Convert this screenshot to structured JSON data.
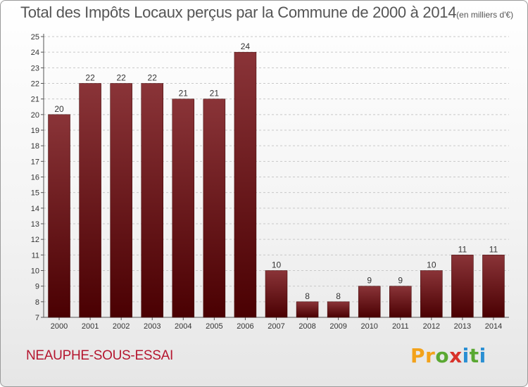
{
  "title": "Total des Impôts Locaux perçus par la Commune de 2000 à 2014",
  "title_unit": "(en milliers d'€)",
  "commune": "NEAUPHE-SOUS-ESSAI",
  "logo": {
    "letters": [
      "P",
      "r",
      "o",
      "x",
      "i",
      "t",
      "i"
    ]
  },
  "colors": {
    "bar_top": "#8a3438",
    "bar_bottom": "#4a0002",
    "commune": "#b5162f",
    "text": "#555555"
  },
  "chart_data": {
    "type": "bar",
    "title": "Total des Impôts Locaux perçus par la Commune de 2000 à 2014",
    "categories": [
      "2000",
      "2001",
      "2002",
      "2003",
      "2004",
      "2005",
      "2006",
      "2007",
      "2008",
      "2009",
      "2010",
      "2011",
      "2012",
      "2013",
      "2014"
    ],
    "values": [
      20,
      22,
      22,
      22,
      21,
      21,
      24,
      10,
      8,
      8,
      9,
      9,
      10,
      11,
      11
    ],
    "value_labels": [
      "20",
      "22",
      "22",
      "22",
      "21",
      "21",
      "24",
      "10",
      "8",
      "8",
      "9",
      "9",
      "10",
      "11",
      "11"
    ],
    "ylim": [
      7,
      25
    ],
    "yticks": [
      7,
      8,
      9,
      10,
      11,
      12,
      13,
      14,
      15,
      16,
      17,
      18,
      19,
      20,
      21,
      22,
      23,
      24,
      25
    ],
    "ytick_labels": [
      "7",
      "8",
      "9",
      "10",
      "11",
      "12",
      "13",
      "14",
      "15",
      "16",
      "17",
      "18",
      "19",
      "20",
      "21",
      "22",
      "23",
      "24",
      "25"
    ],
    "grid": "horizontal dashed",
    "xlabel": "",
    "ylabel": ""
  }
}
